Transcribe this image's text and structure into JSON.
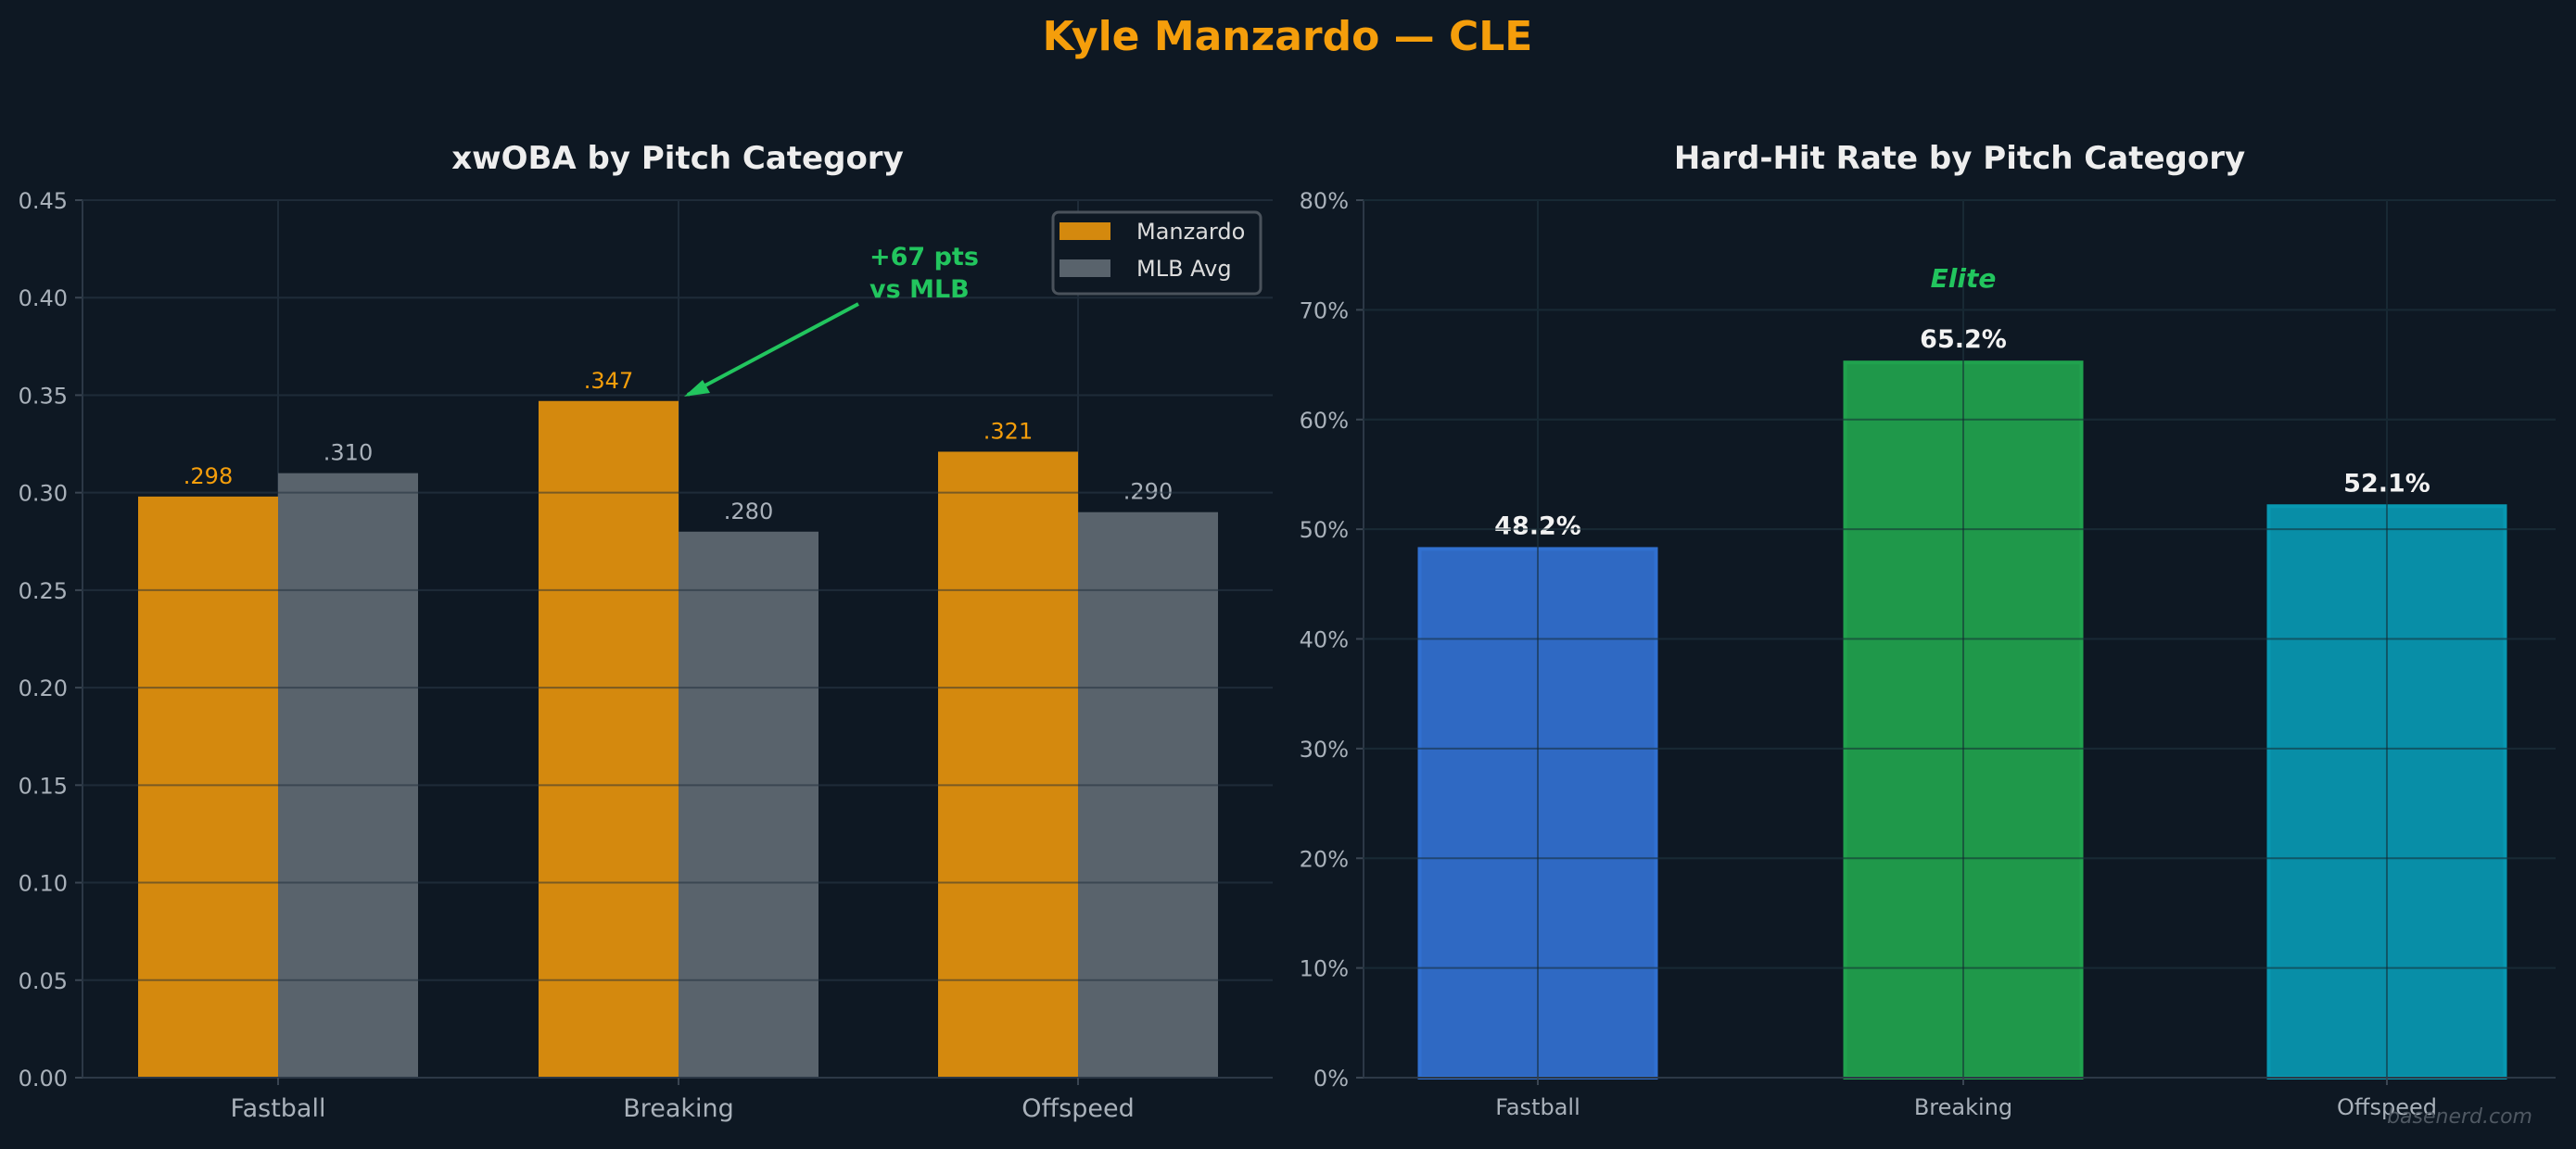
{
  "title": "Kyle Manzardo — CLE",
  "watermark": "basenerd.com",
  "colors": {
    "background": "#0e1823",
    "title": "#f59e0b",
    "manzardo": "#d4890e",
    "mlb": "#59636c",
    "grid": "#1e2b38",
    "annotation": "#22c55e",
    "fastball": "#3170d0",
    "breaking": "#20a24e",
    "offspeed": "#0898b1",
    "text": "#a9b1ba",
    "heading": "#eeeeee"
  },
  "chart_data": [
    {
      "type": "bar",
      "title": "xwOBA by Pitch Category",
      "categories": [
        "Fastball",
        "Breaking",
        "Offspeed"
      ],
      "series": [
        {
          "name": "Manzardo",
          "values": [
            0.298,
            0.347,
            0.321
          ],
          "labels": [
            ".298",
            ".347",
            ".321"
          ]
        },
        {
          "name": "MLB Avg",
          "values": [
            0.31,
            0.28,
            0.29
          ],
          "labels": [
            ".310",
            ".280",
            ".290"
          ]
        }
      ],
      "ylim": [
        0,
        0.45
      ],
      "yticks": [
        "0.00",
        "0.05",
        "0.10",
        "0.15",
        "0.20",
        "0.25",
        "0.30",
        "0.35",
        "0.40",
        "0.45"
      ],
      "grid": true,
      "legend": "top-right",
      "annotation": {
        "lines": [
          "+67 pts",
          "vs MLB"
        ],
        "target_category": "Breaking"
      }
    },
    {
      "type": "bar",
      "title": "Hard-Hit Rate by Pitch Category",
      "categories": [
        "Fastball",
        "Breaking",
        "Offspeed"
      ],
      "values": [
        48.2,
        65.2,
        52.1
      ],
      "labels": [
        "48.2%",
        "65.2%",
        "52.1%"
      ],
      "ylim": [
        0,
        80
      ],
      "yticks": [
        "0%",
        "10%",
        "20%",
        "30%",
        "40%",
        "50%",
        "60%",
        "70%",
        "80%"
      ],
      "grid": true,
      "annotation": {
        "text": "Elite",
        "target_category": "Breaking"
      }
    }
  ]
}
